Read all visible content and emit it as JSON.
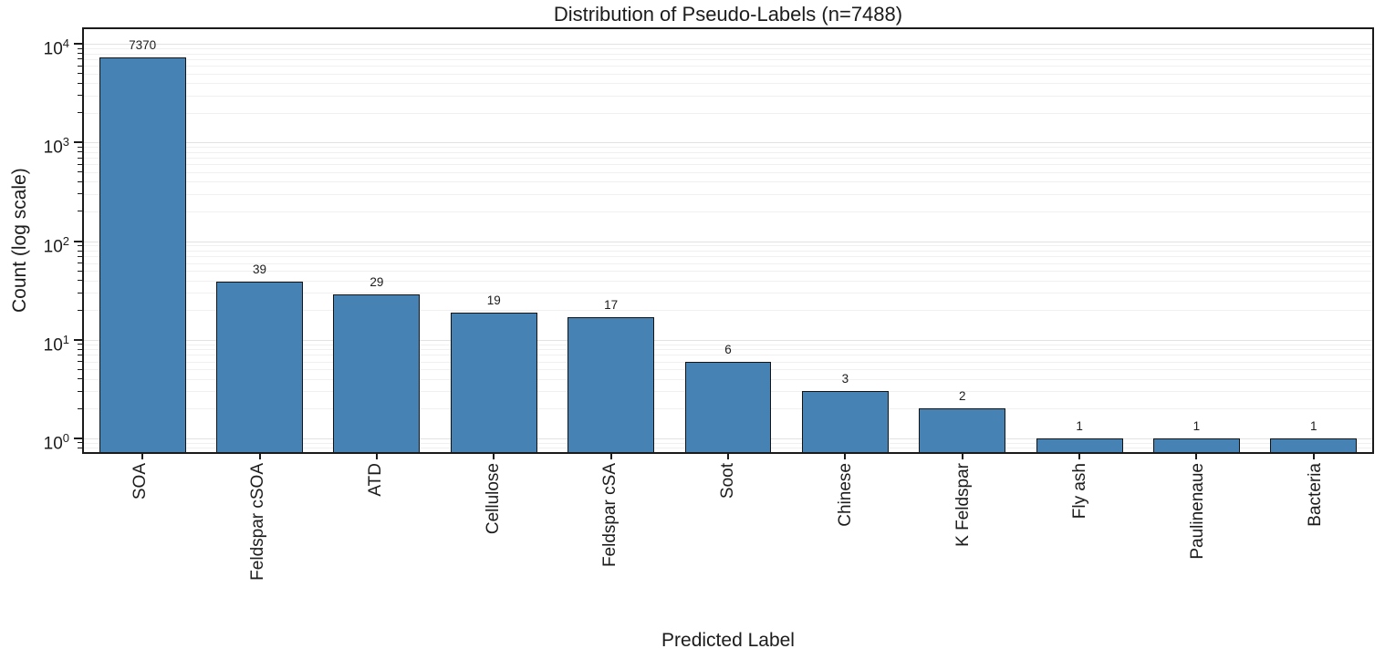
{
  "chart_data": {
    "type": "bar",
    "title": "Distribution of Pseudo-Labels (n=7488)",
    "xlabel": "Predicted Label",
    "ylabel": "Count (log scale)",
    "categories": [
      "SOA",
      "Feldspar cSOA",
      "ATD",
      "Cellulose",
      "Feldspar cSA",
      "Soot",
      "Chinese",
      "K Feldspar",
      "Fly ash",
      "Paulinenaue",
      "Bacteria"
    ],
    "values": [
      7370,
      39,
      29,
      19,
      17,
      6,
      3,
      2,
      1,
      1,
      1
    ],
    "value_labels": [
      "7370",
      "39",
      "29",
      "19",
      "17",
      "6",
      "3",
      "2",
      "1",
      "1",
      "1"
    ],
    "total_n": 7488,
    "yscale": "log",
    "ytick_exponents": [
      0,
      1,
      2,
      3,
      4
    ],
    "ylog_range": [
      -0.14,
      4.15
    ],
    "bar_color": "#4682b4",
    "bar_edge_color": "#141414",
    "grid": true,
    "legend": "none"
  }
}
